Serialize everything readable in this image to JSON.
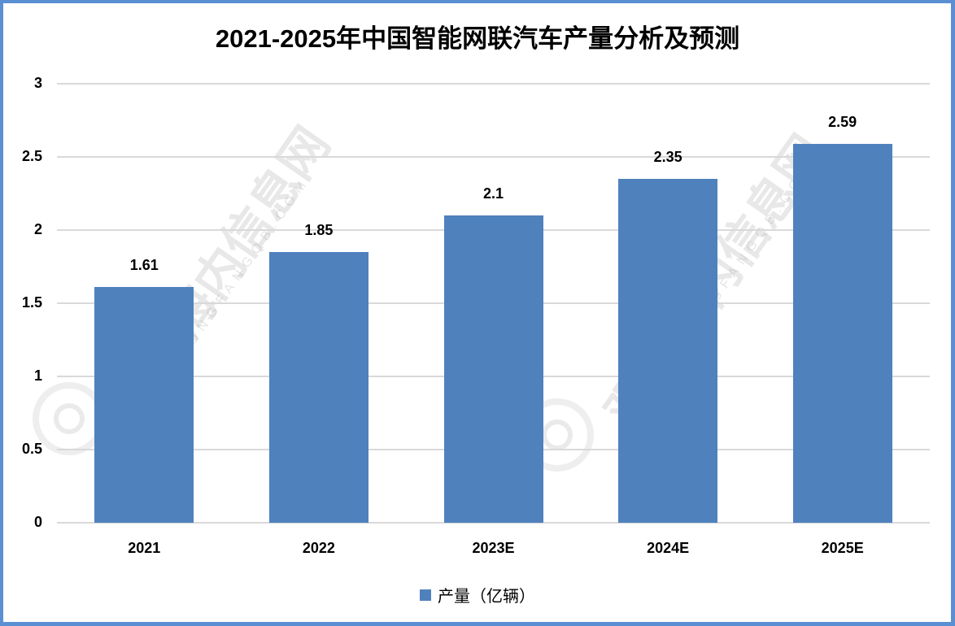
{
  "title": "2021-2025年中国智能网联汽车产量分析及预测",
  "watermark": {
    "text": "观知海内信息网",
    "url": "WWW.DONGFANGQB.COM"
  },
  "legend": {
    "label": "产量（亿辆）",
    "color": "#4f81bd"
  },
  "colors": {
    "frame": "#5b8fd4",
    "bar": "#4f81bd",
    "grid": "#d9d9d9"
  },
  "y_ticks": [
    "0",
    "0.5",
    "1",
    "1.5",
    "2",
    "2.5",
    "3"
  ],
  "chart_data": {
    "type": "bar",
    "title": "2021-2025年中国智能网联汽车产量分析及预测",
    "categories": [
      "2021",
      "2022",
      "2023E",
      "2024E",
      "2025E"
    ],
    "series": [
      {
        "name": "产量（亿辆）",
        "values": [
          1.61,
          1.85,
          2.1,
          2.35,
          2.59
        ]
      }
    ],
    "data_labels": [
      "1.61",
      "1.85",
      "2.1",
      "2.35",
      "2.59"
    ],
    "xlabel": "",
    "ylabel": "",
    "ylim": [
      0,
      3
    ],
    "y_tick_step": 0.5,
    "grid": true,
    "legend_position": "bottom"
  }
}
